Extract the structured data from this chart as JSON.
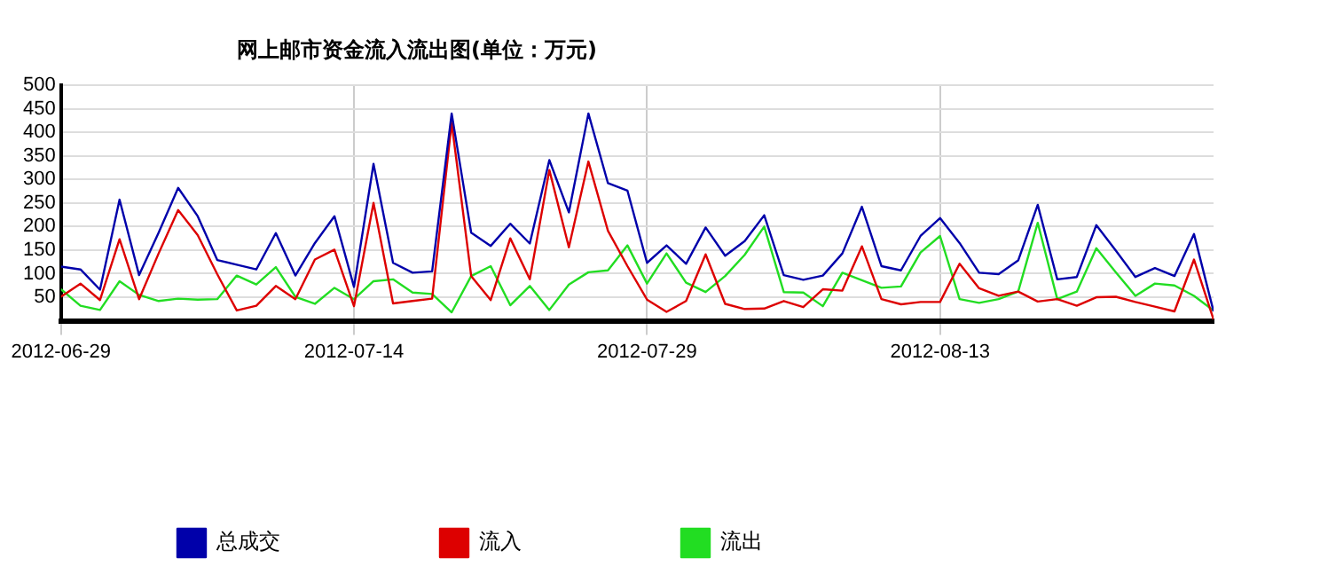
{
  "chart_data": {
    "type": "line",
    "title": "网上邮市资金流入流出图(单位：万元)",
    "x": [
      "2012-06-29",
      "2012-06-30",
      "2012-07-01",
      "2012-07-02",
      "2012-07-03",
      "2012-07-04",
      "2012-07-05",
      "2012-07-06",
      "2012-07-07",
      "2012-07-08",
      "2012-07-09",
      "2012-07-10",
      "2012-07-11",
      "2012-07-12",
      "2012-07-13",
      "2012-07-14",
      "2012-07-15",
      "2012-07-16",
      "2012-07-17",
      "2012-07-18",
      "2012-07-19",
      "2012-07-20",
      "2012-07-21",
      "2012-07-22",
      "2012-07-23",
      "2012-07-24",
      "2012-07-25",
      "2012-07-26",
      "2012-07-27",
      "2012-07-28",
      "2012-07-29",
      "2012-07-30",
      "2012-07-31",
      "2012-08-01",
      "2012-08-02",
      "2012-08-03",
      "2012-08-04",
      "2012-08-05",
      "2012-08-06",
      "2012-08-07",
      "2012-08-08",
      "2012-08-09",
      "2012-08-10",
      "2012-08-11",
      "2012-08-12",
      "2012-08-13",
      "2012-08-14",
      "2012-08-15",
      "2012-08-16",
      "2012-08-17",
      "2012-08-18",
      "2012-08-19",
      "2012-08-20",
      "2012-08-21",
      "2012-08-22",
      "2012-08-23",
      "2012-08-24",
      "2012-08-25",
      "2012-08-26",
      "2012-08-27"
    ],
    "series": [
      {
        "name": "总成交",
        "color": "#0000aa",
        "values": [
          115,
          109,
          66,
          257,
          97,
          187,
          282,
          222,
          129,
          119,
          109,
          186,
          96,
          165,
          222,
          72,
          333,
          123,
          102,
          105,
          440,
          187,
          159,
          206,
          164,
          341,
          230,
          440,
          292,
          276,
          123,
          160,
          121,
          198,
          138,
          169,
          224,
          97,
          87,
          96,
          143,
          242,
          116,
          107,
          180,
          218,
          165,
          102,
          99,
          128,
          246,
          88,
          93,
          203,
          149,
          93,
          112,
          95,
          184,
          20
        ]
      },
      {
        "name": "流入",
        "color": "#dd0000",
        "values": [
          51,
          79,
          44,
          173,
          46,
          143,
          235,
          182,
          99,
          22,
          32,
          74,
          46,
          130,
          151,
          31,
          250,
          37,
          42,
          47,
          420,
          95,
          44,
          175,
          88,
          320,
          156,
          338,
          191,
          116,
          45,
          19,
          42,
          141,
          36,
          25,
          26,
          42,
          29,
          67,
          64,
          158,
          46,
          35,
          40,
          40,
          121,
          69,
          53,
          62,
          41,
          46,
          32,
          50,
          51,
          40,
          30,
          20,
          130,
          3
        ]
      },
      {
        "name": "流出",
        "color": "#22dd22",
        "values": [
          67,
          32,
          23,
          84,
          55,
          42,
          47,
          45,
          46,
          96,
          77,
          114,
          51,
          36,
          70,
          46,
          84,
          88,
          60,
          57,
          18,
          95,
          116,
          33,
          74,
          23,
          77,
          103,
          107,
          160,
          79,
          143,
          81,
          61,
          95,
          140,
          200,
          61,
          60,
          31,
          102,
          86,
          70,
          73,
          145,
          180,
          46,
          38,
          46,
          62,
          208,
          46,
          62,
          154,
          103,
          53,
          79,
          75,
          53,
          22
        ]
      }
    ],
    "xlim": [
      "2012-06-29",
      "2012-08-27"
    ],
    "xticks": [
      "2012-06-29",
      "2012-07-14",
      "2012-07-29",
      "2012-08-13"
    ],
    "ylim": [
      0,
      500
    ],
    "yticks": [
      50,
      100,
      150,
      200,
      250,
      300,
      350,
      400,
      450,
      500
    ],
    "grid": true,
    "legend": "bottom",
    "marker": "none",
    "line_style": "solid"
  }
}
